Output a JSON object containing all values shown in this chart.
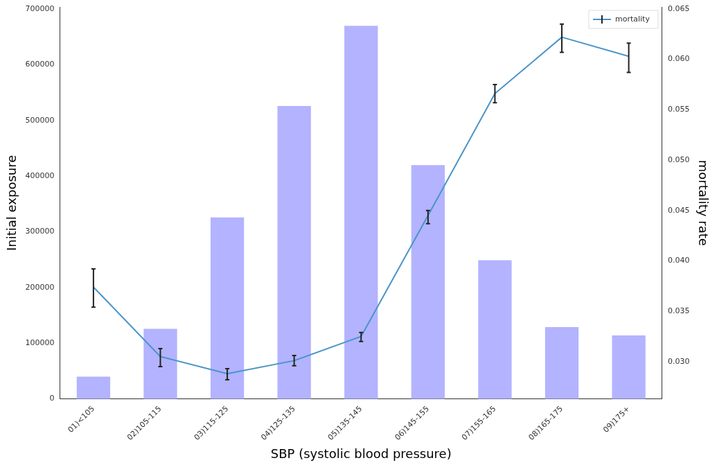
{
  "chart_data": {
    "type": "bar",
    "xlabel": "SBP (systolic blood pressure)",
    "ylabel": "Initial exposure",
    "y2label": "mortality rate",
    "categories": [
      "01)<105",
      "02)105-115",
      "03)115-125",
      "04)125-135",
      "05)135-145",
      "06)145-155",
      "07)155-165",
      "08)165-175",
      "09)175+"
    ],
    "series": [
      {
        "color": "#b3b3ff",
        "values": [
          40000,
          126000,
          326000,
          526000,
          670000,
          420000,
          249000,
          129000,
          114000
        ]
      },
      {
        "type": "line",
        "name": "mortality",
        "color": "#4a94c8",
        "axis": "y2",
        "values": [
          0.0374,
          0.0305,
          0.0288,
          0.0301,
          0.0325,
          0.0445,
          0.0566,
          0.0622,
          0.0603
        ],
        "errors": [
          [
            0.0354,
            0.0392
          ],
          [
            0.0295,
            0.0313
          ],
          [
            0.0282,
            0.0293
          ],
          [
            0.0296,
            0.0306
          ],
          [
            0.032,
            0.0329
          ],
          [
            0.0437,
            0.045
          ],
          [
            0.0557,
            0.0575
          ],
          [
            0.0607,
            0.0635
          ],
          [
            0.0587,
            0.0616
          ]
        ]
      }
    ],
    "ylim": [
      0,
      704000
    ],
    "yticks": [
      0,
      100000,
      200000,
      300000,
      400000,
      500000,
      600000,
      700000
    ],
    "y2lim": [
      0.0263,
      0.0652
    ],
    "y2ticks": [
      {
        "value": 0.03,
        "label": "0.030"
      },
      {
        "value": 0.035,
        "label": "0.035"
      },
      {
        "value": 0.04,
        "label": "0.040"
      },
      {
        "value": 0.045,
        "label": "0.045"
      },
      {
        "value": 0.05,
        "label": "0.050"
      },
      {
        "value": 0.055,
        "label": "0.055"
      },
      {
        "value": 0.06,
        "label": "0.060"
      },
      {
        "value": 0.065,
        "label": "0.065"
      }
    ],
    "legend": "top right",
    "grid": false,
    "marker": "none",
    "line_style": "solid"
  }
}
